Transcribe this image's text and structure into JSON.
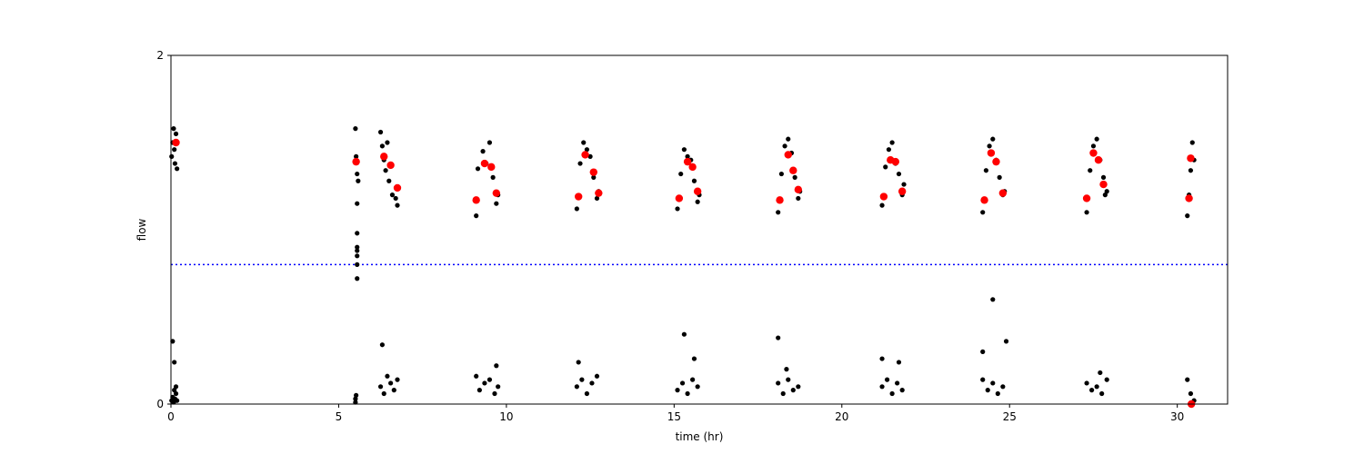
{
  "chart_data": {
    "type": "scatter",
    "xlabel": "time (hr)",
    "ylabel": "flow",
    "xlim": [
      0,
      31.5
    ],
    "ylim": [
      0,
      2
    ],
    "x_ticks": [
      0,
      5,
      10,
      15,
      20,
      25,
      30
    ],
    "y_ticks": [
      0,
      2
    ],
    "grid": false,
    "reference_line": {
      "y": 0.8,
      "style": "dotted",
      "color": "#0000ff"
    },
    "colors": {
      "raw": "#000000",
      "summary": "#ff0000"
    },
    "series": [
      {
        "kind": "raw",
        "x": [
          0.02,
          0.05,
          0.08,
          0.1,
          0.12,
          0.15,
          0.18,
          0.02,
          0.05,
          0.08,
          0.1,
          0.12,
          0.15,
          0.18,
          0.05,
          0.1,
          0.15,
          5.5,
          5.52,
          5.55,
          5.58,
          5.5,
          5.52,
          5.55,
          5.55,
          5.55,
          5.55,
          5.55,
          5.55,
          5.5,
          5.55,
          6.25,
          6.3,
          6.35,
          6.4,
          6.45,
          6.5,
          6.6,
          6.7,
          6.75,
          6.25,
          6.35,
          6.45,
          6.55,
          6.65,
          6.75,
          6.3,
          9.1,
          9.15,
          9.3,
          9.4,
          9.5,
          9.6,
          9.7,
          9.75,
          9.1,
          9.2,
          9.35,
          9.5,
          9.65,
          9.75,
          9.7,
          12.1,
          12.2,
          12.3,
          12.4,
          12.5,
          12.6,
          12.7,
          12.75,
          12.1,
          12.25,
          12.4,
          12.55,
          12.7,
          12.15,
          15.1,
          15.2,
          15.3,
          15.4,
          15.5,
          15.6,
          15.7,
          15.75,
          15.1,
          15.25,
          15.4,
          15.55,
          15.7,
          15.3,
          15.6,
          18.1,
          18.2,
          18.3,
          18.4,
          18.5,
          18.6,
          18.7,
          18.75,
          18.1,
          18.25,
          18.4,
          18.55,
          18.7,
          18.1,
          18.35,
          21.2,
          21.3,
          21.4,
          21.5,
          21.6,
          21.7,
          21.8,
          21.85,
          21.2,
          21.35,
          21.5,
          21.65,
          21.8,
          21.2,
          21.7,
          24.2,
          24.3,
          24.4,
          24.5,
          24.6,
          24.7,
          24.8,
          24.85,
          24.2,
          24.35,
          24.5,
          24.65,
          24.8,
          24.2,
          24.5,
          24.9,
          27.3,
          27.4,
          27.5,
          27.6,
          27.7,
          27.8,
          27.85,
          27.9,
          27.3,
          27.45,
          27.6,
          27.75,
          27.9,
          27.7,
          30.3,
          30.35,
          30.4,
          30.45,
          30.5,
          30.3,
          30.4,
          30.5
        ],
        "y": [
          1.42,
          1.5,
          1.58,
          1.46,
          1.38,
          1.55,
          1.35,
          0.02,
          0.04,
          0.01,
          0.08,
          0.03,
          0.06,
          0.02,
          0.36,
          0.24,
          0.1,
          1.58,
          1.42,
          1.32,
          1.28,
          0.01,
          0.05,
          1.15,
          0.98,
          0.9,
          0.88,
          0.8,
          0.72,
          0.03,
          0.85,
          1.56,
          1.48,
          1.4,
          1.34,
          1.5,
          1.28,
          1.2,
          1.18,
          1.14,
          0.1,
          0.06,
          0.16,
          0.12,
          0.08,
          0.14,
          0.34,
          1.08,
          1.35,
          1.45,
          1.38,
          1.5,
          1.3,
          1.15,
          1.2,
          0.16,
          0.08,
          0.12,
          0.14,
          0.06,
          0.1,
          0.22,
          1.12,
          1.38,
          1.5,
          1.46,
          1.42,
          1.3,
          1.18,
          1.22,
          0.1,
          0.14,
          0.06,
          0.12,
          0.16,
          0.24,
          1.12,
          1.32,
          1.46,
          1.42,
          1.4,
          1.28,
          1.16,
          1.2,
          0.08,
          0.12,
          0.06,
          0.14,
          0.1,
          0.4,
          0.26,
          1.1,
          1.32,
          1.48,
          1.52,
          1.44,
          1.3,
          1.18,
          1.22,
          0.12,
          0.06,
          0.14,
          0.08,
          0.1,
          0.38,
          0.2,
          1.14,
          1.36,
          1.46,
          1.5,
          1.38,
          1.32,
          1.2,
          1.26,
          0.1,
          0.14,
          0.06,
          0.12,
          0.08,
          0.26,
          0.24,
          1.1,
          1.34,
          1.48,
          1.52,
          1.4,
          1.3,
          1.2,
          1.22,
          0.14,
          0.08,
          0.12,
          0.06,
          0.1,
          0.3,
          0.6,
          0.36,
          1.1,
          1.34,
          1.48,
          1.52,
          1.4,
          1.3,
          1.2,
          1.22,
          0.12,
          0.08,
          0.1,
          0.06,
          0.14,
          0.18,
          1.08,
          1.2,
          1.34,
          1.5,
          1.4,
          0.14,
          0.06,
          0.02
        ]
      },
      {
        "kind": "summary",
        "x": [
          0.15,
          5.52,
          6.35,
          6.55,
          6.75,
          9.1,
          9.35,
          9.55,
          9.7,
          12.15,
          12.35,
          12.6,
          12.75,
          15.15,
          15.4,
          15.55,
          15.7,
          18.15,
          18.4,
          18.55,
          18.7,
          21.25,
          21.45,
          21.6,
          21.8,
          24.25,
          24.45,
          24.6,
          24.8,
          27.3,
          27.5,
          27.65,
          27.8,
          30.35,
          30.4,
          30.42
        ],
        "y": [
          1.5,
          1.39,
          1.42,
          1.37,
          1.24,
          1.17,
          1.38,
          1.36,
          1.21,
          1.19,
          1.43,
          1.33,
          1.21,
          1.18,
          1.39,
          1.36,
          1.22,
          1.17,
          1.43,
          1.34,
          1.23,
          1.19,
          1.4,
          1.39,
          1.22,
          1.17,
          1.44,
          1.39,
          1.21,
          1.18,
          1.44,
          1.4,
          1.26,
          1.18,
          1.41,
          0.0
        ]
      }
    ]
  }
}
